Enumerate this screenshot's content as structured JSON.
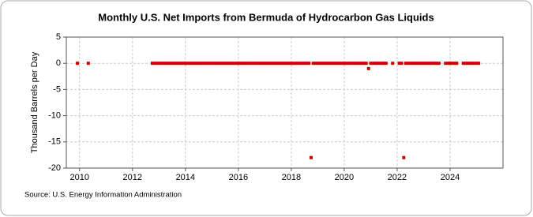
{
  "chart_data": {
    "type": "scatter",
    "title": "Monthly U.S. Net Imports from Bermuda of Hydrocarbon Gas Liquids",
    "y_label": "Thousand Barrels per Day",
    "source": "Source: U.S. Energy Information Administration",
    "color": "#cc0000",
    "grid": true,
    "xlim": [
      2009.5,
      2026
    ],
    "xticks": [
      2010,
      2012,
      2014,
      2016,
      2018,
      2020,
      2022,
      2024
    ],
    "ylim": [
      -20,
      5
    ],
    "yticks": [
      5,
      0,
      -5,
      -10,
      -15,
      -20
    ],
    "x": [
      2009.92,
      2010.33,
      2012.75,
      2012.83,
      2012.92,
      2013.0,
      2013.08,
      2013.17,
      2013.25,
      2013.33,
      2013.42,
      2013.5,
      2013.58,
      2013.67,
      2013.75,
      2013.83,
      2013.92,
      2014.0,
      2014.08,
      2014.17,
      2014.25,
      2014.33,
      2014.42,
      2014.5,
      2014.58,
      2014.67,
      2014.75,
      2014.83,
      2014.92,
      2015.0,
      2015.08,
      2015.17,
      2015.25,
      2015.33,
      2015.42,
      2015.5,
      2015.58,
      2015.67,
      2015.75,
      2015.83,
      2015.92,
      2016.0,
      2016.08,
      2016.17,
      2016.25,
      2016.33,
      2016.42,
      2016.5,
      2016.58,
      2016.67,
      2016.75,
      2016.83,
      2016.92,
      2017.0,
      2017.08,
      2017.17,
      2017.25,
      2017.33,
      2017.42,
      2017.5,
      2017.58,
      2017.67,
      2017.75,
      2017.83,
      2017.92,
      2018.0,
      2018.08,
      2018.17,
      2018.25,
      2018.33,
      2018.42,
      2018.5,
      2018.58,
      2018.67,
      2018.75,
      2018.83,
      2018.92,
      2019.0,
      2019.08,
      2019.17,
      2019.25,
      2019.33,
      2019.42,
      2019.5,
      2019.58,
      2019.67,
      2019.75,
      2019.83,
      2019.92,
      2020.0,
      2020.08,
      2020.17,
      2020.25,
      2020.33,
      2020.42,
      2020.5,
      2020.58,
      2020.67,
      2020.75,
      2020.83,
      2020.92,
      2021.0,
      2021.08,
      2021.17,
      2021.25,
      2021.33,
      2021.42,
      2021.5,
      2021.58,
      2021.83,
      2022.08,
      2022.17,
      2022.25,
      2022.33,
      2022.42,
      2022.5,
      2022.58,
      2022.67,
      2022.75,
      2022.83,
      2022.92,
      2023.0,
      2023.08,
      2023.17,
      2023.25,
      2023.33,
      2023.42,
      2023.5,
      2023.58,
      2023.83,
      2023.92,
      2024.0,
      2024.08,
      2024.17,
      2024.25,
      2024.5,
      2024.58,
      2024.67,
      2024.75,
      2024.83,
      2024.92,
      2025.0,
      2025.08
    ],
    "values": [
      0,
      0,
      0,
      0,
      0,
      0,
      0,
      0,
      0,
      0,
      0,
      0,
      0,
      0,
      0,
      0,
      0,
      0,
      0,
      0,
      0,
      0,
      0,
      0,
      0,
      0,
      0,
      0,
      0,
      0,
      0,
      0,
      0,
      0,
      0,
      0,
      0,
      0,
      0,
      0,
      0,
      0,
      0,
      0,
      0,
      0,
      0,
      0,
      0,
      0,
      0,
      0,
      0,
      0,
      0,
      0,
      0,
      0,
      0,
      0,
      0,
      0,
      0,
      0,
      0,
      0,
      0,
      0,
      0,
      0,
      0,
      0,
      0,
      0,
      -18,
      0,
      0,
      0,
      0,
      0,
      0,
      0,
      0,
      0,
      0,
      0,
      0,
      0,
      0,
      0,
      0,
      0,
      0,
      0,
      0,
      0,
      0,
      0,
      0,
      0,
      -1,
      0,
      0,
      0,
      0,
      0,
      0,
      0,
      0,
      0,
      0,
      0,
      -18,
      0,
      0,
      0,
      0,
      0,
      0,
      0,
      0,
      0,
      0,
      0,
      0,
      0,
      0,
      0,
      0,
      0,
      0,
      0,
      0,
      0,
      0,
      0,
      0,
      0,
      0,
      0,
      0,
      0,
      0
    ]
  }
}
